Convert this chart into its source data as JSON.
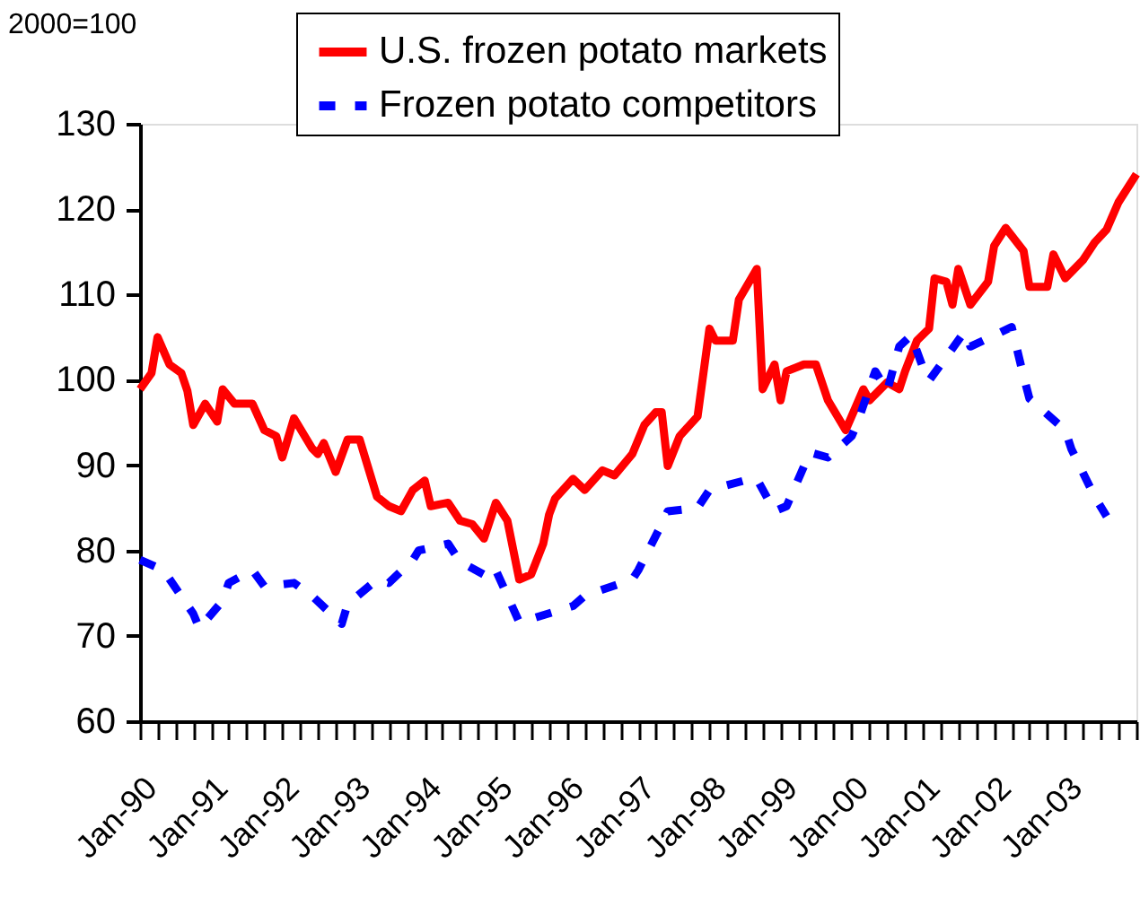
{
  "chart_data": {
    "type": "line",
    "ylabel": "2000=100",
    "legend": "top",
    "grid": false,
    "marker": "none",
    "xlim": [
      "1990-01",
      "2004-01"
    ],
    "ylim": [
      60,
      130
    ],
    "yticks": [
      60,
      70,
      80,
      90,
      100,
      110,
      120,
      130
    ],
    "xticks": [
      {
        "value": "1990-01",
        "label": "Jan-90"
      },
      {
        "value": "1990-04",
        "label": null
      },
      {
        "value": "1990-07",
        "label": null
      },
      {
        "value": "1990-10",
        "label": null
      },
      {
        "value": "1991-01",
        "label": "Jan-91"
      },
      {
        "value": "1991-04",
        "label": null
      },
      {
        "value": "1991-07",
        "label": null
      },
      {
        "value": "1991-10",
        "label": null
      },
      {
        "value": "1992-01",
        "label": "Jan-92"
      },
      {
        "value": "1992-04",
        "label": null
      },
      {
        "value": "1992-07",
        "label": null
      },
      {
        "value": "1992-10",
        "label": null
      },
      {
        "value": "1993-01",
        "label": "Jan-93"
      },
      {
        "value": "1993-04",
        "label": null
      },
      {
        "value": "1993-07",
        "label": null
      },
      {
        "value": "1993-10",
        "label": null
      },
      {
        "value": "1994-01",
        "label": "Jan-94"
      },
      {
        "value": "1994-04",
        "label": null
      },
      {
        "value": "1994-07",
        "label": null
      },
      {
        "value": "1994-10",
        "label": null
      },
      {
        "value": "1995-01",
        "label": "Jan-95"
      },
      {
        "value": "1995-04",
        "label": null
      },
      {
        "value": "1995-07",
        "label": null
      },
      {
        "value": "1995-10",
        "label": null
      },
      {
        "value": "1996-01",
        "label": "Jan-96"
      },
      {
        "value": "1996-04",
        "label": null
      },
      {
        "value": "1996-07",
        "label": null
      },
      {
        "value": "1996-10",
        "label": null
      },
      {
        "value": "1997-01",
        "label": "Jan-97"
      },
      {
        "value": "1997-04",
        "label": null
      },
      {
        "value": "1997-07",
        "label": null
      },
      {
        "value": "1997-10",
        "label": null
      },
      {
        "value": "1998-01",
        "label": "Jan-98"
      },
      {
        "value": "1998-04",
        "label": null
      },
      {
        "value": "1998-07",
        "label": null
      },
      {
        "value": "1998-10",
        "label": null
      },
      {
        "value": "1999-01",
        "label": "Jan-99"
      },
      {
        "value": "1999-04",
        "label": null
      },
      {
        "value": "1999-07",
        "label": null
      },
      {
        "value": "1999-10",
        "label": null
      },
      {
        "value": "2000-01",
        "label": "Jan-00"
      },
      {
        "value": "2000-04",
        "label": null
      },
      {
        "value": "2000-07",
        "label": null
      },
      {
        "value": "2000-10",
        "label": null
      },
      {
        "value": "2001-01",
        "label": "Jan-01"
      },
      {
        "value": "2001-04",
        "label": null
      },
      {
        "value": "2001-07",
        "label": null
      },
      {
        "value": "2001-10",
        "label": null
      },
      {
        "value": "2002-01",
        "label": "Jan-02"
      },
      {
        "value": "2002-04",
        "label": null
      },
      {
        "value": "2002-07",
        "label": null
      },
      {
        "value": "2002-10",
        "label": null
      },
      {
        "value": "2003-01",
        "label": "Jan-03"
      },
      {
        "value": "2003-04",
        "label": null
      },
      {
        "value": "2003-07",
        "label": null
      },
      {
        "value": "2003-10",
        "label": null
      },
      {
        "value": "2004-01",
        "label": null
      }
    ],
    "series": [
      {
        "name": "U.S. frozen potato markets",
        "color": "#ff0000",
        "line_style": "solid",
        "x": [
          "1990-01",
          "1990-03",
          "1990-04",
          "1990-06",
          "1990-08",
          "1990-09",
          "1990-10",
          "1990-12",
          "1991-02",
          "1991-03",
          "1991-05",
          "1991-08",
          "1991-10",
          "1991-12",
          "1992-01",
          "1992-03",
          "1992-06",
          "1992-07",
          "1992-08",
          "1992-10",
          "1992-12",
          "1993-02",
          "1993-05",
          "1993-07",
          "1993-09",
          "1993-11",
          "1994-01",
          "1994-02",
          "1994-05",
          "1994-07",
          "1994-09",
          "1994-11",
          "1995-01",
          "1995-03",
          "1995-05",
          "1995-07",
          "1995-09",
          "1995-10",
          "1995-11",
          "1996-02",
          "1996-04",
          "1996-07",
          "1996-09",
          "1996-12",
          "1997-02",
          "1997-04",
          "1997-05",
          "1997-06",
          "1997-08",
          "1997-11",
          "1998-01",
          "1998-02",
          "1998-05",
          "1998-06",
          "1998-09",
          "1998-10",
          "1998-12",
          "1999-01",
          "1999-02",
          "1999-05",
          "1999-07",
          "1999-09",
          "1999-12",
          "2000-03",
          "2000-04",
          "2000-07",
          "2000-09",
          "2000-10",
          "2000-12",
          "2001-02",
          "2001-03",
          "2001-05",
          "2001-06",
          "2001-07",
          "2001-09",
          "2001-12",
          "2002-01",
          "2002-03",
          "2002-06",
          "2002-07",
          "2002-10",
          "2002-11",
          "2003-01",
          "2003-04",
          "2003-06",
          "2003-08",
          "2003-10",
          "2004-01"
        ],
        "values": [
          98.9,
          100.8,
          105,
          101.8,
          100.8,
          98.7,
          94.7,
          97.2,
          95.1,
          98.9,
          97.2,
          97.2,
          94.1,
          93.4,
          90.9,
          95.5,
          92,
          91.3,
          92.6,
          89.2,
          93,
          93,
          86.3,
          85.2,
          84.6,
          87.1,
          88.2,
          85.2,
          85.6,
          83.5,
          83.1,
          81.4,
          85.6,
          83.5,
          76.6,
          77.2,
          80.8,
          84.2,
          86.1,
          88.4,
          87.1,
          89.4,
          88.8,
          91.3,
          94.7,
          96.2,
          96.2,
          89.9,
          93.4,
          95.7,
          106,
          104.6,
          104.6,
          109.4,
          113,
          98.9,
          101.8,
          97.6,
          101,
          101.8,
          101.8,
          97.6,
          94.1,
          98.9,
          97.6,
          99.7,
          98.9,
          101,
          104.6,
          106,
          111.9,
          111.5,
          108.8,
          113,
          108.8,
          111.5,
          115.7,
          117.8,
          115.1,
          110.9,
          110.9,
          114.7,
          111.9,
          114,
          116.1,
          117.6,
          120.8,
          124.1
        ]
      },
      {
        "name": "Frozen potato competitors",
        "color": "#0000ff",
        "line_style": "dashed",
        "x": [
          "1990-01",
          "1990-05",
          "1990-10",
          "1990-11",
          "1991-03",
          "1991-04",
          "1991-08",
          "1991-10",
          "1992-03",
          "1992-06",
          "1992-11",
          "1992-12",
          "1993-05",
          "1993-07",
          "1993-11",
          "1993-12",
          "1994-05",
          "1994-07",
          "1994-12",
          "1995-01",
          "1995-05",
          "1995-07",
          "1996-02",
          "1996-04",
          "1996-12",
          "1997-01",
          "1997-05",
          "1997-06",
          "1997-11",
          "1998-01",
          "1998-08",
          "1998-09",
          "1998-12",
          "1999-02",
          "1999-06",
          "1999-09",
          "2000-01",
          "2000-02",
          "2000-05",
          "2000-07",
          "2000-09",
          "2000-11",
          "2001-01",
          "2001-02",
          "2001-08",
          "2001-09",
          "2002-01",
          "2002-04",
          "2002-06",
          "2002-07",
          "2003-01",
          "2003-02",
          "2003-06",
          "2003-08"
        ],
        "values": [
          78.9,
          77.7,
          72.6,
          70.9,
          74.1,
          76.2,
          77.7,
          75.8,
          76.2,
          74.7,
          71.4,
          73.7,
          76.6,
          76.2,
          78.9,
          80,
          80.8,
          78.7,
          76.8,
          77.7,
          71.6,
          72,
          73.5,
          74.7,
          76.6,
          77.7,
          83.1,
          84.6,
          85,
          87.1,
          88.4,
          88.4,
          84.6,
          85.2,
          91.5,
          90.9,
          93.4,
          95.1,
          101,
          98.7,
          103.9,
          105.2,
          101.4,
          99.9,
          105.6,
          103.9,
          105.2,
          106.2,
          100.4,
          97.8,
          94.1,
          91.9,
          86.3,
          84
        ]
      }
    ]
  }
}
